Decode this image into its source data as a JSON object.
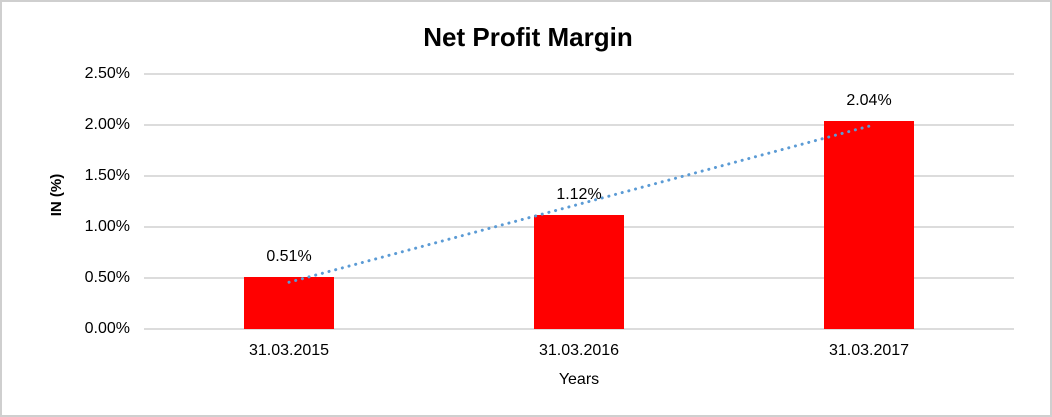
{
  "chart_data": {
    "type": "bar",
    "title": "Net Profit Margin",
    "xlabel": "Years",
    "ylabel": "IN (%)",
    "categories": [
      "31.03.2015",
      "31.03.2016",
      "31.03.2017"
    ],
    "values": [
      0.51,
      1.12,
      2.04
    ],
    "value_labels": [
      "0.51%",
      "1.12%",
      "2.04%"
    ],
    "ylim": [
      0,
      2.5
    ],
    "yticks": [
      {
        "value": 0.0,
        "label": "0.00%"
      },
      {
        "value": 0.5,
        "label": "0.50%"
      },
      {
        "value": 1.0,
        "label": "1.00%"
      },
      {
        "value": 1.5,
        "label": "1.50%"
      },
      {
        "value": 2.0,
        "label": "2.00%"
      },
      {
        "value": 2.5,
        "label": "2.50%"
      }
    ],
    "grid": true,
    "legend_position": "none",
    "bar_color": "#FF0000",
    "trendline": {
      "type": "linear",
      "style": "dotted",
      "color": "#5B9BD5"
    },
    "colors": {
      "gridline": "#DCDCDC",
      "text": "#000000",
      "border": "#CFCFCF",
      "background": "#FFFFFF"
    }
  }
}
